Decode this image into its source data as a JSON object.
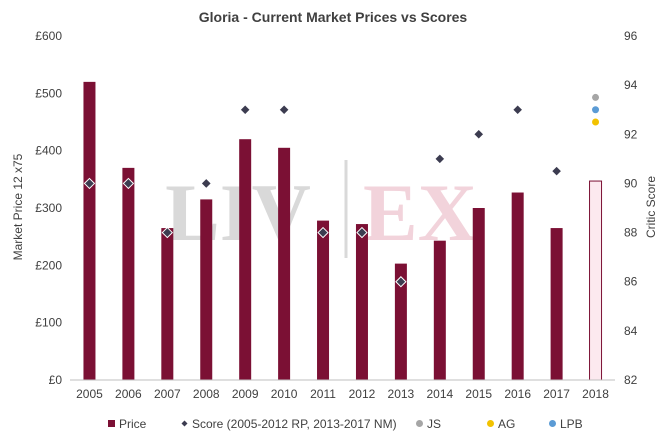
{
  "chart_data": {
    "type": "bar",
    "title": "Gloria - Current Market Prices vs Scores",
    "watermark": [
      "LIV",
      "EX"
    ],
    "categories": [
      "2005",
      "2006",
      "2007",
      "2008",
      "2009",
      "2010",
      "2011",
      "2012",
      "2013",
      "2014",
      "2015",
      "2016",
      "2017",
      "2018"
    ],
    "y_left": {
      "label": "Market Price 12 x75",
      "range": [
        0,
        600
      ],
      "ticks": [
        "£0",
        "£100",
        "£200",
        "£300",
        "£400",
        "£500",
        "£600"
      ]
    },
    "y_right": {
      "label": "Critic Score",
      "range": [
        82,
        96
      ],
      "ticks": [
        "82",
        "84",
        "86",
        "88",
        "90",
        "92",
        "94",
        "96"
      ]
    },
    "series": [
      {
        "name": "Price",
        "kind": "bar",
        "color": "#7b1034",
        "values": [
          520,
          370,
          265,
          315,
          420,
          405,
          278,
          272,
          203,
          243,
          300,
          327,
          265,
          null
        ]
      },
      {
        "name": "Price 2018",
        "kind": "bar-outline",
        "color": "#fce9ef",
        "stroke": "#7b1034",
        "values": [
          null,
          null,
          null,
          null,
          null,
          null,
          null,
          null,
          null,
          null,
          null,
          null,
          null,
          347
        ]
      },
      {
        "name": "Score (2005-2012 RP, 2013-2017 NM)",
        "kind": "marker",
        "color": "#3c3c50",
        "values": [
          90,
          90,
          88,
          90,
          93,
          93,
          88,
          88,
          86,
          91,
          92,
          93,
          90.5,
          null
        ]
      },
      {
        "name": "JS",
        "kind": "point",
        "color": "#a6a6a6",
        "values": [
          null,
          null,
          null,
          null,
          null,
          null,
          null,
          null,
          null,
          null,
          null,
          null,
          null,
          93.5
        ]
      },
      {
        "name": "AG",
        "kind": "point",
        "color": "#f2c200",
        "values": [
          null,
          null,
          null,
          null,
          null,
          null,
          null,
          null,
          null,
          null,
          null,
          null,
          null,
          92.5
        ]
      },
      {
        "name": "LPB",
        "kind": "point",
        "color": "#5b9bd5",
        "values": [
          null,
          null,
          null,
          null,
          null,
          null,
          null,
          null,
          null,
          null,
          null,
          null,
          null,
          93
        ]
      }
    ],
    "legend": {
      "placement": "bottom",
      "items": [
        {
          "label": "Price",
          "marker": "square",
          "color": "#7b1034"
        },
        {
          "label": "Score (2005-2012 RP, 2013-2017 NM)",
          "marker": "diamond",
          "color": "#3c3c50"
        },
        {
          "label": "JS",
          "marker": "circle",
          "color": "#a6a6a6"
        },
        {
          "label": "AG",
          "marker": "circle",
          "color": "#f2c200"
        },
        {
          "label": "LPB",
          "marker": "circle",
          "color": "#5b9bd5"
        }
      ]
    }
  }
}
